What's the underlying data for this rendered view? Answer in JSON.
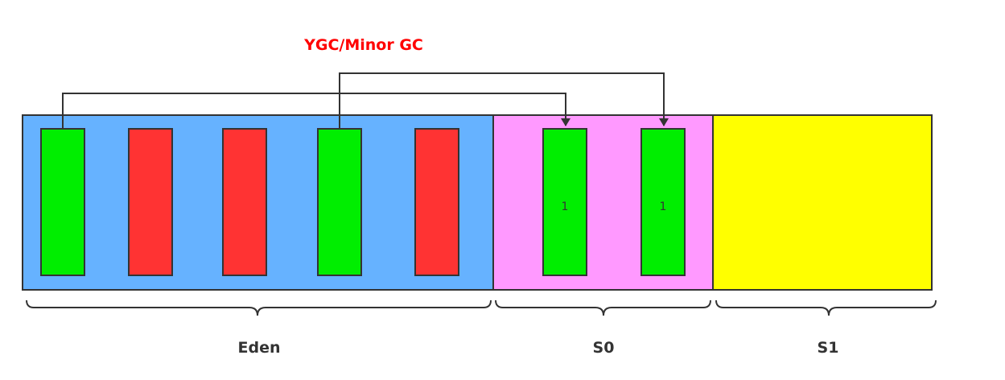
{
  "title": "YGC/Minor GC",
  "regions": [
    {
      "key": "eden",
      "label": "Eden",
      "fill": "#66b2ff"
    },
    {
      "key": "s0",
      "label": "S0",
      "fill": "#ff99ff"
    },
    {
      "key": "s1",
      "label": "S1",
      "fill": "#ffff00"
    }
  ],
  "objects": [
    {
      "region": "eden",
      "state": "live"
    },
    {
      "region": "eden",
      "state": "garbage"
    },
    {
      "region": "eden",
      "state": "garbage"
    },
    {
      "region": "eden",
      "state": "live"
    },
    {
      "region": "eden",
      "state": "garbage"
    },
    {
      "region": "s0",
      "state": "live",
      "age": "1"
    },
    {
      "region": "s0",
      "state": "live",
      "age": "1"
    }
  ],
  "colors": {
    "live": "#00ee00",
    "garbage": "#ff3333",
    "title": "#ff0000",
    "border": "#333333",
    "text": "#333333"
  }
}
